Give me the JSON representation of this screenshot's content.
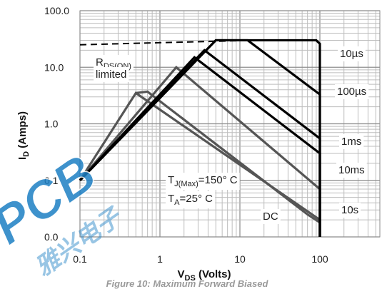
{
  "chart_data": {
    "type": "line",
    "x_scale": "log",
    "y_scale": "log",
    "xlim": [
      0.1,
      1000
    ],
    "ylim": [
      0.01,
      100
    ],
    "x_ticks": [
      {
        "value": 0.1,
        "label": "0.1"
      },
      {
        "value": 1,
        "label": "1"
      },
      {
        "value": 10,
        "label": "10"
      },
      {
        "value": 100,
        "label": "100"
      }
    ],
    "y_ticks": [
      {
        "value": 100,
        "label": "100.0"
      },
      {
        "value": 10,
        "label": "10.0"
      },
      {
        "value": 1,
        "label": "1.0"
      },
      {
        "value": 0.1,
        "label": "0.1"
      },
      {
        "value": 0.01,
        "label": "0.0"
      }
    ],
    "xlabel": {
      "main": "V",
      "sub": "DS",
      "rest": " (Volts)"
    },
    "ylabel": {
      "main": "I",
      "sub": "D",
      "rest": " (Amps)"
    },
    "caption": "Figure 10: Maximum Forward Biased",
    "grid": true,
    "rds_limit": {
      "points": [
        [
          0.1,
          25
        ],
        [
          15,
          30
        ]
      ],
      "style": "dashed"
    },
    "rds_label": {
      "line1_main": "R",
      "line1_sub": "DS(ON)",
      "line2": "limited"
    },
    "conditions": {
      "tj_main": "T",
      "tj_sub": "J(Max)",
      "tj_rest": "=150° C",
      "ta_main": "T",
      "ta_sub": "A",
      "ta_rest": "=25° C"
    },
    "series": [
      {
        "name": "10µs",
        "color": "#000000",
        "points": [
          [
            0.1,
            0.1
          ],
          [
            5,
            30
          ],
          [
            90,
            30
          ],
          [
            100,
            26
          ],
          [
            100,
            0.01
          ]
        ]
      },
      {
        "name": "100µs",
        "color": "#000000",
        "points": [
          [
            0.1,
            0.1
          ],
          [
            5,
            30
          ],
          [
            12.5,
            30
          ],
          [
            100,
            3.3
          ],
          [
            100,
            0.01
          ]
        ]
      },
      {
        "name": "1ms",
        "color": "#000000",
        "points": [
          [
            0.1,
            0.1
          ],
          [
            3.6,
            20
          ],
          [
            100,
            0.55
          ],
          [
            100,
            0.01
          ]
        ]
      },
      {
        "name": "10ms",
        "color": "#000000",
        "points": [
          [
            0.1,
            0.1
          ],
          [
            2.7,
            15
          ],
          [
            100,
            0.3
          ],
          [
            100,
            0.01
          ]
        ]
      },
      {
        "name": "10s",
        "color": "#555555",
        "points": [
          [
            0.1,
            0.1
          ],
          [
            1.6,
            10
          ],
          [
            100,
            0.07
          ],
          [
            100,
            0.01
          ]
        ]
      },
      {
        "name": "DC",
        "color": "#555555",
        "points": [
          [
            0.1,
            0.1
          ],
          [
            0.5,
            3.5
          ],
          [
            100,
            0.02
          ],
          [
            100,
            0.01
          ]
        ]
      },
      {
        "name": "",
        "color": "#555555",
        "points": [
          [
            0.5,
            3.5
          ],
          [
            0.7,
            3.7
          ],
          [
            70,
            0.025
          ],
          [
            100,
            0.018
          ]
        ]
      }
    ],
    "curve_labels": [
      {
        "text": "10µs",
        "series": "10µs"
      },
      {
        "text": "100µs",
        "series": "100µs"
      },
      {
        "text": "1ms",
        "series": "1ms"
      },
      {
        "text": "10ms",
        "series": "10ms"
      },
      {
        "text": "10s",
        "series": "10s"
      },
      {
        "text": "DC",
        "series": "DC"
      }
    ]
  },
  "watermark": {
    "text": "PCB",
    "text2": "雅兴电子",
    "color": "#1d7fc4"
  }
}
